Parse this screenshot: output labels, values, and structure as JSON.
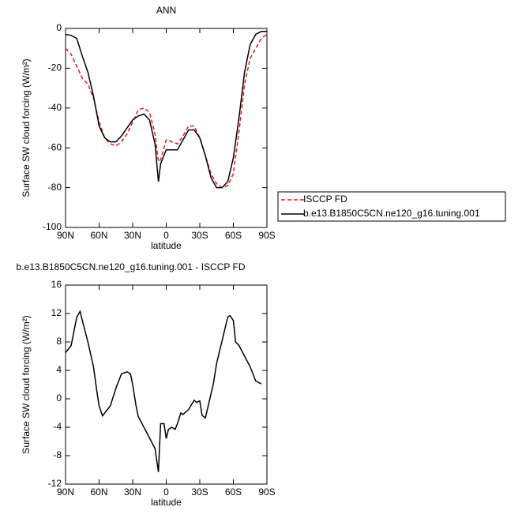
{
  "chart_data": [
    {
      "type": "line",
      "title": "ANN",
      "x_label": "latitude",
      "y_label": "Surface SW cloud forcing (W/m²)",
      "x": [
        90,
        85,
        80,
        75,
        70,
        65,
        60,
        55,
        50,
        45,
        40,
        35,
        30,
        25,
        20,
        15,
        10,
        7,
        5,
        0,
        -5,
        -10,
        -15,
        -20,
        -25,
        -30,
        -35,
        -40,
        -45,
        -50,
        -55,
        -60,
        -65,
        -70,
        -75,
        -80,
        -85,
        -90
      ],
      "series": [
        {
          "name": "ISCCP FD",
          "color": "#e41a1c",
          "line_style": "dashed",
          "values": [
            -10,
            -13,
            -19,
            -25,
            -28,
            -35,
            -47,
            -55,
            -58,
            -59,
            -57,
            -53,
            -47,
            -41,
            -40,
            -42,
            -53,
            -67,
            -66,
            -56,
            -57,
            -58,
            -54,
            -49,
            -49,
            -55,
            -64,
            -73,
            -78,
            -80,
            -79,
            -73,
            -52,
            -28,
            -15,
            -10,
            -5,
            -3
          ]
        },
        {
          "name": "b.e13.B1850C5CN.ne120_g16.tuning.001",
          "color": "#000000",
          "line_style": "solid",
          "values": [
            -3,
            -3.5,
            -5,
            -14,
            -22,
            -34,
            -49,
            -55,
            -57,
            -57,
            -54,
            -50,
            -46,
            -44,
            -43,
            -46,
            -58,
            -77,
            -68,
            -61,
            -61,
            -61,
            -56,
            -51,
            -51,
            -55,
            -64,
            -75,
            -80,
            -80,
            -77,
            -65,
            -45,
            -22,
            -8,
            -3,
            -1.5,
            -1.5
          ]
        }
      ],
      "xlim": [
        90,
        -90
      ],
      "xticks": [
        {
          "value": 90,
          "label": "90N"
        },
        {
          "value": 60,
          "label": "60N"
        },
        {
          "value": 30,
          "label": "30N"
        },
        0,
        {
          "value": -30,
          "label": "30S"
        },
        {
          "value": -60,
          "label": "60S"
        },
        {
          "value": -90,
          "label": "90S"
        }
      ],
      "ylim": [
        -100,
        0
      ],
      "yticks": [
        0,
        -20,
        -40,
        -60,
        -80,
        -100
      ],
      "legend": "right"
    },
    {
      "type": "line",
      "title": "b.e13.B1850C5CN.ne120_g16.tuning.001 - ISCCP FD",
      "x_label": "latitude",
      "y_label": "Surface SW cloud forcing (W/m²)",
      "x": [
        90,
        85,
        80,
        77,
        75,
        70,
        65,
        62,
        60,
        57,
        55,
        50,
        45,
        40,
        35,
        32,
        30,
        27,
        25,
        20,
        15,
        10,
        7,
        5,
        2,
        0,
        -2,
        -5,
        -8,
        -10,
        -13,
        -15,
        -20,
        -25,
        -27,
        -30,
        -32,
        -35,
        -40,
        -42,
        -45,
        -50,
        -55,
        -57,
        -60,
        -62,
        -65,
        -70,
        -75,
        -80,
        -85
      ],
      "series": [
        {
          "color": "#000000",
          "line_style": "solid",
          "values": [
            6.5,
            7.5,
            11.5,
            12.3,
            11,
            8,
            4.5,
            1,
            -1,
            -2.4,
            -2,
            -1,
            1.5,
            3.5,
            3.8,
            3.5,
            2,
            -1,
            -2.5,
            -4,
            -5.5,
            -7,
            -10.3,
            -3.5,
            -3.5,
            -5.6,
            -4.3,
            -4,
            -4.3,
            -3.5,
            -2,
            -2.2,
            -1.5,
            -0.2,
            -0.5,
            -0.3,
            -2.3,
            -2.7,
            0.7,
            2,
            5,
            8.2,
            11.5,
            11.7,
            11,
            8,
            7.5,
            6,
            4.5,
            2.5,
            2.1
          ]
        }
      ],
      "xlim": [
        90,
        -90
      ],
      "xticks": [
        {
          "value": 90,
          "label": "90N"
        },
        {
          "value": 60,
          "label": "60N"
        },
        {
          "value": 30,
          "label": "30N"
        },
        0,
        {
          "value": -30,
          "label": "30S"
        },
        {
          "value": -60,
          "label": "60S"
        },
        {
          "value": -90,
          "label": "90S"
        }
      ],
      "ylim": [
        -12,
        16
      ],
      "yticks": [
        16,
        12,
        8,
        4,
        0,
        -4,
        -8,
        -12
      ]
    }
  ]
}
